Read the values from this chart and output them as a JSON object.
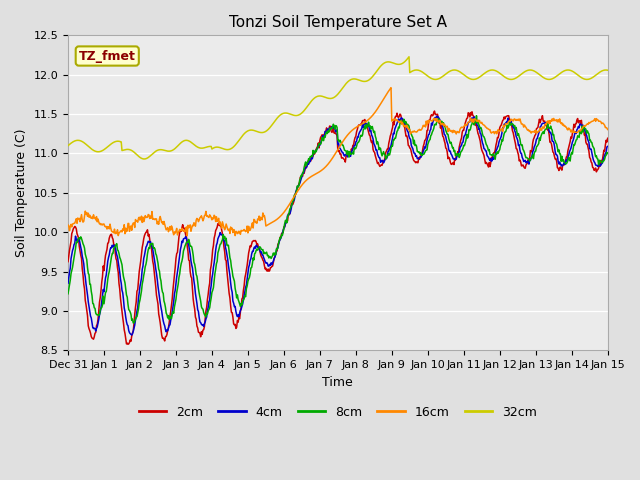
{
  "title": "Tonzi Soil Temperature Set A",
  "xlabel": "Time",
  "ylabel": "Soil Temperature (C)",
  "ylim": [
    8.5,
    12.5
  ],
  "annotation": "TZ_fmet",
  "annotation_color": "#8b0000",
  "annotation_bg": "#ffffcc",
  "annotation_border": "#aaaa00",
  "bg_color": "#e0e0e0",
  "plot_bg": "#ebebeb",
  "legend_entries": [
    "2cm",
    "4cm",
    "8cm",
    "16cm",
    "32cm"
  ],
  "line_colors": [
    "#cc0000",
    "#0000cc",
    "#00aa00",
    "#ff8800",
    "#cccc00"
  ],
  "tick_labels": [
    "Dec 31",
    "Jan 1",
    "Jan 2",
    "Jan 3",
    "Jan 4",
    "Jan 5",
    "Jan 6",
    "Jan 7",
    "Jan 8",
    "Jan 9",
    "Jan 10",
    "Jan 11",
    "Jan 12",
    "Jan 13",
    "Jan 14",
    "Jan 15"
  ]
}
